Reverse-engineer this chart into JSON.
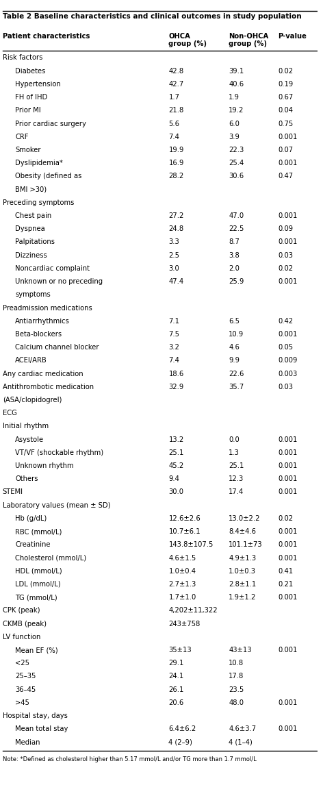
{
  "title": "Table 2 Baseline characteristics and clinical outcomes in study population",
  "col_headers": [
    "Patient characteristics",
    "OHCA\ngroup (%)",
    "Non-OHCA\ngroup (%)",
    "P-value"
  ],
  "rows": [
    {
      "label": "Risk factors",
      "indent": 0,
      "bold": false,
      "ohca": "",
      "nonohca": "",
      "pval": ""
    },
    {
      "label": "Diabetes",
      "indent": 1,
      "bold": false,
      "ohca": "42.8",
      "nonohca": "39.1",
      "pval": "0.02"
    },
    {
      "label": "Hypertension",
      "indent": 1,
      "bold": false,
      "ohca": "42.7",
      "nonohca": "40.6",
      "pval": "0.19"
    },
    {
      "label": "FH of IHD",
      "indent": 1,
      "bold": false,
      "ohca": "1.7",
      "nonohca": "1.9",
      "pval": "0.67"
    },
    {
      "label": "Prior MI",
      "indent": 1,
      "bold": false,
      "ohca": "21.8",
      "nonohca": "19.2",
      "pval": "0.04"
    },
    {
      "label": "Prior cardiac surgery",
      "indent": 1,
      "bold": false,
      "ohca": "5.6",
      "nonohca": "6.0",
      "pval": "0.75"
    },
    {
      "label": "CRF",
      "indent": 1,
      "bold": false,
      "ohca": "7.4",
      "nonohca": "3.9",
      "pval": "0.001"
    },
    {
      "label": "Smoker",
      "indent": 1,
      "bold": false,
      "ohca": "19.9",
      "nonohca": "22.3",
      "pval": "0.07"
    },
    {
      "label": "Dyslipidemia*",
      "indent": 1,
      "bold": false,
      "ohca": "16.9",
      "nonohca": "25.4",
      "pval": "0.001"
    },
    {
      "label": "Obesity (defined as",
      "indent": 1,
      "bold": false,
      "ohca": "28.2",
      "nonohca": "30.6",
      "pval": "0.47"
    },
    {
      "label": "BMI >30)",
      "indent": 1,
      "bold": false,
      "ohca": "",
      "nonohca": "",
      "pval": ""
    },
    {
      "label": "Preceding symptoms",
      "indent": 0,
      "bold": false,
      "ohca": "",
      "nonohca": "",
      "pval": ""
    },
    {
      "label": "Chest pain",
      "indent": 1,
      "bold": false,
      "ohca": "27.2",
      "nonohca": "47.0",
      "pval": "0.001"
    },
    {
      "label": "Dyspnea",
      "indent": 1,
      "bold": false,
      "ohca": "24.8",
      "nonohca": "22.5",
      "pval": "0.09"
    },
    {
      "label": "Palpitations",
      "indent": 1,
      "bold": false,
      "ohca": "3.3",
      "nonohca": "8.7",
      "pval": "0.001"
    },
    {
      "label": "Dizziness",
      "indent": 1,
      "bold": false,
      "ohca": "2.5",
      "nonohca": "3.8",
      "pval": "0.03"
    },
    {
      "label": "Noncardiac complaint",
      "indent": 1,
      "bold": false,
      "ohca": "3.0",
      "nonohca": "2.0",
      "pval": "0.02"
    },
    {
      "label": "Unknown or no preceding",
      "indent": 1,
      "bold": false,
      "ohca": "47.4",
      "nonohca": "25.9",
      "pval": "0.001"
    },
    {
      "label": "symptoms",
      "indent": 1,
      "bold": false,
      "ohca": "",
      "nonohca": "",
      "pval": ""
    },
    {
      "label": "Preadmission medications",
      "indent": 0,
      "bold": false,
      "ohca": "",
      "nonohca": "",
      "pval": ""
    },
    {
      "label": "Antiarrhythmics",
      "indent": 1,
      "bold": false,
      "ohca": "7.1",
      "nonohca": "6.5",
      "pval": "0.42"
    },
    {
      "label": "Beta-blockers",
      "indent": 1,
      "bold": false,
      "ohca": "7.5",
      "nonohca": "10.9",
      "pval": "0.001"
    },
    {
      "label": "Calcium channel blocker",
      "indent": 1,
      "bold": false,
      "ohca": "3.2",
      "nonohca": "4.6",
      "pval": "0.05"
    },
    {
      "label": "ACEI/ARB",
      "indent": 1,
      "bold": false,
      "ohca": "7.4",
      "nonohca": "9.9",
      "pval": "0.009"
    },
    {
      "label": "Any cardiac medication",
      "indent": 0,
      "bold": false,
      "ohca": "18.6",
      "nonohca": "22.6",
      "pval": "0.003"
    },
    {
      "label": "Antithrombotic medication",
      "indent": 0,
      "bold": false,
      "ohca": "32.9",
      "nonohca": "35.7",
      "pval": "0.03"
    },
    {
      "label": "(ASA/clopidogrel)",
      "indent": 0,
      "bold": false,
      "ohca": "",
      "nonohca": "",
      "pval": ""
    },
    {
      "label": "ECG",
      "indent": 0,
      "bold": false,
      "ohca": "",
      "nonohca": "",
      "pval": ""
    },
    {
      "label": "Initial rhythm",
      "indent": 0,
      "bold": false,
      "ohca": "",
      "nonohca": "",
      "pval": ""
    },
    {
      "label": "Asystole",
      "indent": 1,
      "bold": false,
      "ohca": "13.2",
      "nonohca": "0.0",
      "pval": "0.001"
    },
    {
      "label": "VT/VF (shockable rhythm)",
      "indent": 1,
      "bold": false,
      "ohca": "25.1",
      "nonohca": "1.3",
      "pval": "0.001"
    },
    {
      "label": "Unknown rhythm",
      "indent": 1,
      "bold": false,
      "ohca": "45.2",
      "nonohca": "25.1",
      "pval": "0.001"
    },
    {
      "label": "Others",
      "indent": 1,
      "bold": false,
      "ohca": "9.4",
      "nonohca": "12.3",
      "pval": "0.001"
    },
    {
      "label": "STEMI",
      "indent": 0,
      "bold": false,
      "ohca": "30.0",
      "nonohca": "17.4",
      "pval": "0.001"
    },
    {
      "label": "Laboratory values (mean ± SD)",
      "indent": 0,
      "bold": false,
      "ohca": "",
      "nonohca": "",
      "pval": ""
    },
    {
      "label": "Hb (g/dL)",
      "indent": 1,
      "bold": false,
      "ohca": "12.6±2.6",
      "nonohca": "13.0±2.2",
      "pval": "0.02"
    },
    {
      "label": "RBC (mmol/L)",
      "indent": 1,
      "bold": false,
      "ohca": "10.7±6.1",
      "nonohca": "8.4±4.6",
      "pval": "0.001"
    },
    {
      "label": "Creatinine",
      "indent": 1,
      "bold": false,
      "ohca": "143.8±107.5",
      "nonohca": "101.1±73",
      "pval": "0.001"
    },
    {
      "label": "Cholesterol (mmol/L)",
      "indent": 1,
      "bold": false,
      "ohca": "4.6±1.5",
      "nonohca": "4.9±1.3",
      "pval": "0.001"
    },
    {
      "label": "HDL (mmol/L)",
      "indent": 1,
      "bold": false,
      "ohca": "1.0±0.4",
      "nonohca": "1.0±0.3",
      "pval": "0.41"
    },
    {
      "label": "LDL (mmol/L)",
      "indent": 1,
      "bold": false,
      "ohca": "2.7±1.3",
      "nonohca": "2.8±1.1",
      "pval": "0.21"
    },
    {
      "label": "TG (mmol/L)",
      "indent": 1,
      "bold": false,
      "ohca": "1.7±1.0",
      "nonohca": "1.9±1.2",
      "pval": "0.001"
    },
    {
      "label": "CPK (peak)",
      "indent": 0,
      "bold": false,
      "ohca": "4,202±11,322",
      "nonohca": "",
      "pval": ""
    },
    {
      "label": "CKMB (peak)",
      "indent": 0,
      "bold": false,
      "ohca": "243±758",
      "nonohca": "",
      "pval": ""
    },
    {
      "label": "LV function",
      "indent": 0,
      "bold": false,
      "ohca": "",
      "nonohca": "",
      "pval": ""
    },
    {
      "label": "Mean EF (%)",
      "indent": 1,
      "bold": false,
      "ohca": "35±13",
      "nonohca": "43±13",
      "pval": "0.001"
    },
    {
      "label": "<25",
      "indent": 1,
      "bold": false,
      "ohca": "29.1",
      "nonohca": "10.8",
      "pval": ""
    },
    {
      "label": "25–35",
      "indent": 1,
      "bold": false,
      "ohca": "24.1",
      "nonohca": "17.8",
      "pval": ""
    },
    {
      "label": "36–45",
      "indent": 1,
      "bold": false,
      "ohca": "26.1",
      "nonohca": "23.5",
      "pval": ""
    },
    {
      "label": ">45",
      "indent": 1,
      "bold": false,
      "ohca": "20.6",
      "nonohca": "48.0",
      "pval": "0.001"
    },
    {
      "label": "Hospital stay, days",
      "indent": 0,
      "bold": false,
      "ohca": "",
      "nonohca": "",
      "pval": ""
    },
    {
      "label": "Mean total stay",
      "indent": 1,
      "bold": false,
      "ohca": "6.4±6.2",
      "nonohca": "4.6±3.7",
      "pval": "0.001"
    },
    {
      "label": "Median",
      "indent": 1,
      "bold": false,
      "ohca": "4 (2–9)",
      "nonohca": "4 (1–4)",
      "pval": ""
    }
  ],
  "footnote": "Note: *Defined as cholesterol higher than 5.17 mmol/L and/or TG more than 1.7 mmol/L",
  "bg_color": "#ffffff",
  "header_line_color": "#000000",
  "text_color": "#000000"
}
